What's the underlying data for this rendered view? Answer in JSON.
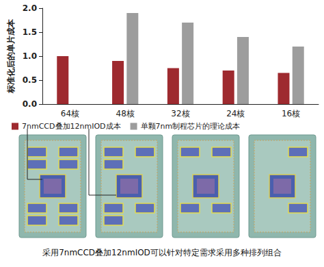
{
  "chart_data": {
    "type": "bar",
    "y_label": "标准化后的单片成本",
    "categories": [
      "64核",
      "48核",
      "32核",
      "24核",
      "16核"
    ],
    "series": [
      {
        "name": "7nmCCD叠加12nmIOD成本",
        "color": "#9e2a2f",
        "values": [
          1.0,
          0.9,
          0.75,
          0.7,
          0.65
        ]
      },
      {
        "name": "单颗7nm制程芯片的理论成本",
        "color": "#9d9d9d",
        "values": [
          null,
          1.9,
          1.7,
          1.4,
          1.2
        ]
      }
    ],
    "ylim": [
      0,
      2
    ],
    "yticks": [
      {
        "value": 0,
        "label": "0.0"
      },
      0.5,
      {
        "value": 1,
        "label": "1.0"
      },
      1.5,
      {
        "value": 2,
        "label": "2.0"
      }
    ],
    "grid": false,
    "legend": "bottom",
    "annotations": [
      "采用7nmCCD叠加12nmIOD可以针对特定需求采用多种排列组合"
    ]
  }
}
